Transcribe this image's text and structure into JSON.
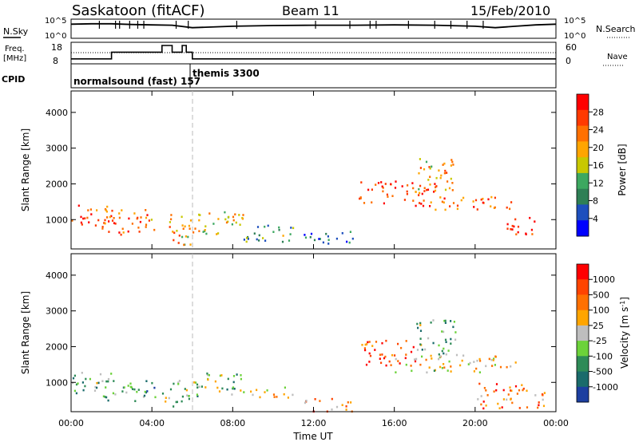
{
  "header": {
    "title": "Saskatoon (fitACF)",
    "beam": "Beam 11",
    "date": "15/Feb/2010"
  },
  "colors": {
    "power_scale": [
      "#0000ff",
      "#1d4fbd",
      "#2e7f55",
      "#3da860",
      "#c8c800",
      "#ffa500",
      "#ff7000",
      "#ff3a00",
      "#ff0000"
    ],
    "velocity_scale": [
      "#1c3fa0",
      "#1a6b6b",
      "#2e8b57",
      "#6cd23a",
      "#bebebe",
      "#ffa500",
      "#ff7000",
      "#ff4400",
      "#ff0000"
    ]
  },
  "status_panel": {
    "nsky_label": "N.Sky",
    "nsearch_label": "N.Search",
    "noise_ticks": [
      "10^5",
      "10^0"
    ],
    "freq_label_1": "Freq.",
    "freq_label_2": "[MHz]",
    "freq_ticks": [
      "18",
      "8"
    ],
    "nave_label": "Nave",
    "nave_ticks": [
      "60",
      "0"
    ],
    "cpid_label": "CPID",
    "cpid_1": "normalsound (fast) 157",
    "cpid_2": "themis 3300"
  },
  "chart_data": [
    {
      "type": "line",
      "title": "N.Sky / N.Search",
      "x": [
        0,
        1,
        2,
        3,
        4,
        5,
        6,
        8,
        10,
        12,
        14,
        16,
        18,
        20,
        21,
        22,
        23,
        24
      ],
      "series": [
        {
          "values": [
            3.8,
            3.9,
            3.9,
            3.7,
            3.6,
            3.5,
            2.8,
            3.2,
            3.4,
            3.5,
            3.5,
            3.6,
            3.5,
            3.2,
            2.8,
            3.2,
            3.6,
            3.8
          ]
        }
      ],
      "xlim": [
        0,
        24
      ]
    },
    {
      "type": "line",
      "title": "Freq. / Nave",
      "x": [
        0,
        2,
        2,
        4.5,
        4.5,
        5.0,
        5.0,
        5.5,
        5.5,
        5.7,
        5.7,
        6.0,
        6.0,
        24
      ],
      "series": [
        {
          "values": [
            10,
            10,
            14,
            14,
            18,
            18,
            14,
            14,
            18,
            18,
            14,
            14,
            10,
            10
          ]
        }
      ],
      "xlim": [
        0,
        24
      ]
    },
    {
      "type": "heatmap",
      "title": "Power [dB]",
      "x_label": "Time UT",
      "y_label": "Slant Range [km]",
      "xlim": [
        0,
        24
      ],
      "ylim": [
        180,
        4600
      ],
      "x_ticks": [
        "00:00",
        "04:00",
        "08:00",
        "12:00",
        "16:00",
        "20:00",
        "00:00"
      ],
      "y_ticks": [
        "1000",
        "2000",
        "3000",
        "4000"
      ],
      "colorbar_ticks": [
        "28",
        "24",
        "20",
        "16",
        "12",
        "8",
        "4"
      ],
      "scatter_regions": [
        {
          "t0": 0.0,
          "t1": 2.0,
          "r0": 800,
          "r1": 1500,
          "level": 0.8
        },
        {
          "t0": 1.5,
          "t1": 4.2,
          "r0": 600,
          "r1": 1300,
          "level": 0.75
        },
        {
          "t0": 4.5,
          "t1": 5.9,
          "r0": 300,
          "r1": 1200,
          "level": 0.6
        },
        {
          "t0": 6.0,
          "t1": 8.5,
          "r0": 600,
          "r1": 1300,
          "level": 0.55
        },
        {
          "t0": 8.5,
          "t1": 11.0,
          "r0": 400,
          "r1": 900,
          "level": 0.35
        },
        {
          "t0": 11.5,
          "t1": 14.0,
          "r0": 300,
          "r1": 700,
          "level": 0.2
        },
        {
          "t0": 14.2,
          "t1": 18.0,
          "r0": 1400,
          "r1": 2100,
          "level": 0.85
        },
        {
          "t0": 17.0,
          "t1": 19.0,
          "r0": 1800,
          "r1": 2800,
          "level": 0.6
        },
        {
          "t0": 18.0,
          "t1": 22.0,
          "r0": 1300,
          "r1": 1700,
          "level": 0.8
        },
        {
          "t0": 21.5,
          "t1": 23.0,
          "r0": 500,
          "r1": 1100,
          "level": 0.9
        }
      ]
    },
    {
      "type": "heatmap",
      "title": "Velocity [m s^-1]",
      "x_label": "Time UT",
      "y_label": "Slant Range [km]",
      "xlim": [
        0,
        24
      ],
      "ylim": [
        180,
        4600
      ],
      "x_ticks": [
        "00:00",
        "04:00",
        "08:00",
        "12:00",
        "16:00",
        "20:00",
        "00:00"
      ],
      "y_ticks": [
        "1000",
        "2000",
        "3000",
        "4000"
      ],
      "colorbar_ticks": [
        "1000",
        "500",
        "100",
        "25",
        "-25",
        "-100",
        "-500",
        "-1000"
      ],
      "scatter_regions": [
        {
          "t0": 0.0,
          "t1": 2.0,
          "r0": 600,
          "r1": 1300,
          "level": 0.35
        },
        {
          "t0": 1.5,
          "t1": 4.2,
          "r0": 500,
          "r1": 1100,
          "level": 0.3
        },
        {
          "t0": 4.5,
          "t1": 5.9,
          "r0": 300,
          "r1": 1100,
          "level": 0.45
        },
        {
          "t0": 6.0,
          "t1": 8.5,
          "r0": 600,
          "r1": 1300,
          "level": 0.4
        },
        {
          "t0": 8.5,
          "t1": 11.0,
          "r0": 600,
          "r1": 900,
          "level": 0.55
        },
        {
          "t0": 11.5,
          "t1": 14.0,
          "r0": 200,
          "r1": 600,
          "level": 0.7
        },
        {
          "t0": 14.2,
          "t1": 17.0,
          "r0": 1500,
          "r1": 2200,
          "level": 0.85
        },
        {
          "t0": 16.0,
          "t1": 22.0,
          "r0": 1300,
          "r1": 1800,
          "level": 0.55
        },
        {
          "t0": 17.0,
          "t1": 19.0,
          "r0": 1800,
          "r1": 2800,
          "level": 0.35
        },
        {
          "t0": 20.0,
          "t1": 23.5,
          "r0": 300,
          "r1": 1000,
          "level": 0.75
        }
      ]
    }
  ]
}
